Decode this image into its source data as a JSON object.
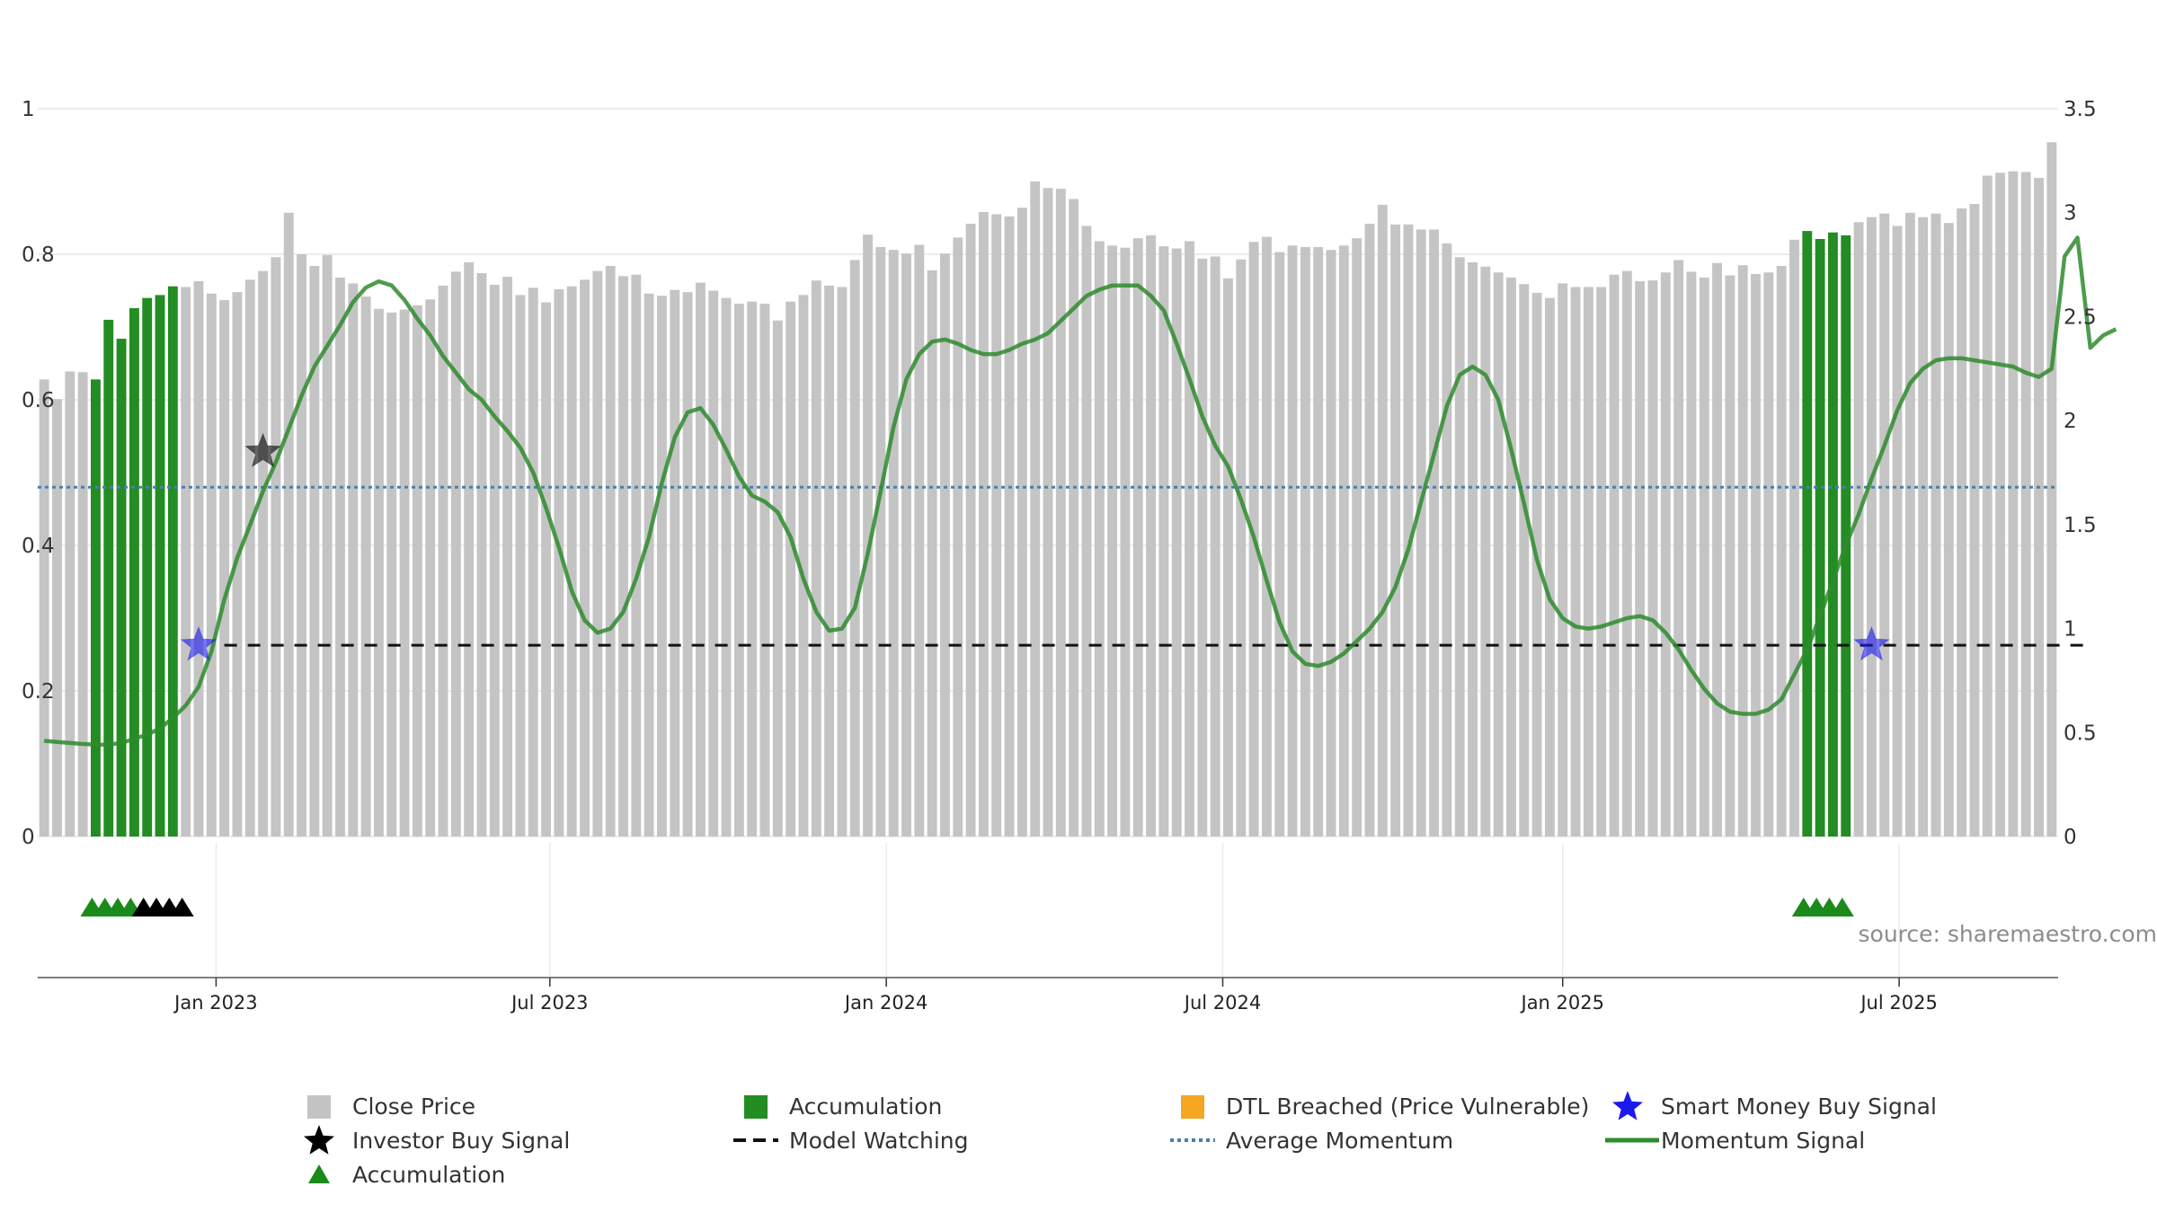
{
  "chart_data": {
    "type": "bar+line",
    "left_axis": {
      "ticks": [
        0,
        0.2,
        0.4,
        0.6,
        0.8,
        1
      ],
      "labels": [
        "0",
        "0.2",
        "0.4",
        "0.6",
        "0.8",
        "1"
      ],
      "range": [
        0,
        1
      ]
    },
    "right_axis": {
      "ticks": [
        0,
        0.5,
        1,
        1.5,
        2,
        2.5,
        3,
        3.5
      ],
      "labels": [
        "0",
        "0.5",
        "1",
        "1.5",
        "2",
        "2.5",
        "3",
        "3.5"
      ],
      "range": [
        0,
        3.5
      ]
    },
    "x_axis": {
      "labels": [
        "Jan 2023",
        "Jul 2023",
        "Jan 2024",
        "Jul 2024",
        "Jan 2025",
        "Jul 2025"
      ]
    },
    "close_price": [
      0.628,
      0.601,
      0.639,
      0.638,
      0.628,
      0.71,
      0.684,
      0.726,
      0.74,
      0.744,
      0.756,
      0.755,
      0.763,
      0.746,
      0.737,
      0.748,
      0.765,
      0.777,
      0.796,
      0.857,
      0.8,
      0.784,
      0.799,
      0.768,
      0.76,
      0.742,
      0.725,
      0.72,
      0.724,
      0.73,
      0.738,
      0.757,
      0.776,
      0.789,
      0.774,
      0.758,
      0.769,
      0.744,
      0.754,
      0.734,
      0.752,
      0.756,
      0.765,
      0.777,
      0.784,
      0.77,
      0.772,
      0.746,
      0.743,
      0.751,
      0.748,
      0.761,
      0.75,
      0.74,
      0.732,
      0.735,
      0.732,
      0.709,
      0.735,
      0.744,
      0.764,
      0.757,
      0.755,
      0.792,
      0.827,
      0.81,
      0.806,
      0.801,
      0.813,
      0.778,
      0.801,
      0.823,
      0.842,
      0.858,
      0.855,
      0.852,
      0.864,
      0.9,
      0.891,
      0.89,
      0.876,
      0.839,
      0.818,
      0.812,
      0.809,
      0.822,
      0.826,
      0.811,
      0.808,
      0.818,
      0.794,
      0.797,
      0.767,
      0.793,
      0.817,
      0.824,
      0.803,
      0.812,
      0.81,
      0.81,
      0.806,
      0.812,
      0.822,
      0.842,
      0.868,
      0.841,
      0.841,
      0.834,
      0.834,
      0.815,
      0.796,
      0.789,
      0.783,
      0.775,
      0.768,
      0.759,
      0.747,
      0.74,
      0.76,
      0.755,
      0.755,
      0.755,
      0.772,
      0.777,
      0.763,
      0.764,
      0.775,
      0.792,
      0.776,
      0.768,
      0.788,
      0.771,
      0.785,
      0.773,
      0.775,
      0.784,
      0.82,
      0.832,
      0.821,
      0.83,
      0.826,
      0.844,
      0.851,
      0.856,
      0.839,
      0.857,
      0.851,
      0.856,
      0.843,
      0.863,
      0.869,
      0.908,
      0.912,
      0.914,
      0.913,
      0.905,
      0.954
    ],
    "accumulation_bar_indices": [
      4,
      5,
      6,
      7,
      8,
      9,
      10,
      137,
      138,
      139,
      140
    ],
    "momentum_signal": [
      0.46,
      0.455,
      0.45,
      0.445,
      0.442,
      0.442,
      0.45,
      0.47,
      0.49,
      0.52,
      0.57,
      0.63,
      0.72,
      0.89,
      1.14,
      1.34,
      1.5,
      1.66,
      1.8,
      1.96,
      2.12,
      2.26,
      2.36,
      2.46,
      2.57,
      2.64,
      2.67,
      2.65,
      2.58,
      2.49,
      2.41,
      2.31,
      2.23,
      2.15,
      2.1,
      2.02,
      1.95,
      1.87,
      1.75,
      1.58,
      1.39,
      1.18,
      1.04,
      0.98,
      1.0,
      1.08,
      1.24,
      1.44,
      1.7,
      1.92,
      2.04,
      2.06,
      1.98,
      1.86,
      1.73,
      1.64,
      1.61,
      1.56,
      1.44,
      1.24,
      1.08,
      0.99,
      1.0,
      1.1,
      1.36,
      1.66,
      1.97,
      2.2,
      2.32,
      2.38,
      2.39,
      2.37,
      2.34,
      2.32,
      2.32,
      2.34,
      2.37,
      2.39,
      2.42,
      2.48,
      2.54,
      2.6,
      2.63,
      2.65,
      2.65,
      2.65,
      2.6,
      2.53,
      2.37,
      2.2,
      2.02,
      1.88,
      1.78,
      1.62,
      1.44,
      1.23,
      1.03,
      0.89,
      0.83,
      0.82,
      0.84,
      0.88,
      0.94,
      1.0,
      1.08,
      1.2,
      1.38,
      1.61,
      1.84,
      2.07,
      2.22,
      2.26,
      2.22,
      2.1,
      1.86,
      1.6,
      1.33,
      1.14,
      1.05,
      1.01,
      1.0,
      1.01,
      1.03,
      1.05,
      1.06,
      1.04,
      0.98,
      0.9,
      0.8,
      0.71,
      0.64,
      0.6,
      0.59,
      0.59,
      0.61,
      0.66,
      0.78,
      0.9,
      1.06,
      1.23,
      1.4,
      1.55,
      1.72,
      1.88,
      2.05,
      2.18,
      2.25,
      2.29,
      2.3,
      2.3,
      2.29,
      2.28,
      2.27,
      2.26,
      2.23,
      2.21,
      2.25,
      2.79,
      2.88,
      2.35,
      2.41,
      2.44
    ],
    "average_momentum": 1.68,
    "model_watching": {
      "value": 0.92,
      "from_index": 14,
      "to_index": 159
    },
    "investor_buy_signals": [
      {
        "index": 17,
        "value": 1.85
      }
    ],
    "smart_money_buy_signals": [
      {
        "index": 12,
        "value": 0.92
      },
      {
        "index": 142,
        "value": 0.92
      }
    ],
    "accumulation_markers": [
      {
        "index": 4,
        "color": "#1a8a1a"
      },
      {
        "index": 5,
        "color": "#1a8a1a"
      },
      {
        "index": 6,
        "color": "#1a8a1a"
      },
      {
        "index": 7,
        "color": "#1a8a1a"
      },
      {
        "index": 8,
        "color": "#000000"
      },
      {
        "index": 9,
        "color": "#000000"
      },
      {
        "index": 10,
        "color": "#000000"
      },
      {
        "index": 11,
        "color": "#000000"
      },
      {
        "index": 137,
        "color": "#1a8a1a"
      },
      {
        "index": 138,
        "color": "#1a8a1a"
      },
      {
        "index": 139,
        "color": "#1a8a1a"
      },
      {
        "index": 140,
        "color": "#1a8a1a"
      }
    ],
    "source": "source: sharemaestro.com",
    "colors": {
      "price": "#c4c4c4",
      "accumulation": "#238c23",
      "momentum": "#2e8b2e",
      "average": "#4a7fae",
      "watching": "#111111",
      "smart_money": "#1a1aee",
      "investor": "#000000",
      "dtl": "#f5a623"
    }
  },
  "legend": [
    {
      "label": "Close Price",
      "symbol": "gray-square"
    },
    {
      "label": "Accumulation",
      "symbol": "green-square"
    },
    {
      "label": "DTL Breached (Price Vulnerable)",
      "symbol": "orange-square"
    },
    {
      "label": "Smart Money Buy Signal",
      "symbol": "blue-star"
    },
    {
      "label": "Investor Buy Signal",
      "symbol": "black-star"
    },
    {
      "label": "Model Watching",
      "symbol": "dashed-line"
    },
    {
      "label": "Average Momentum",
      "symbol": "dotted-line"
    },
    {
      "label": "Momentum Signal",
      "symbol": "green-line"
    },
    {
      "label": "Accumulation",
      "symbol": "green-triangle"
    }
  ]
}
